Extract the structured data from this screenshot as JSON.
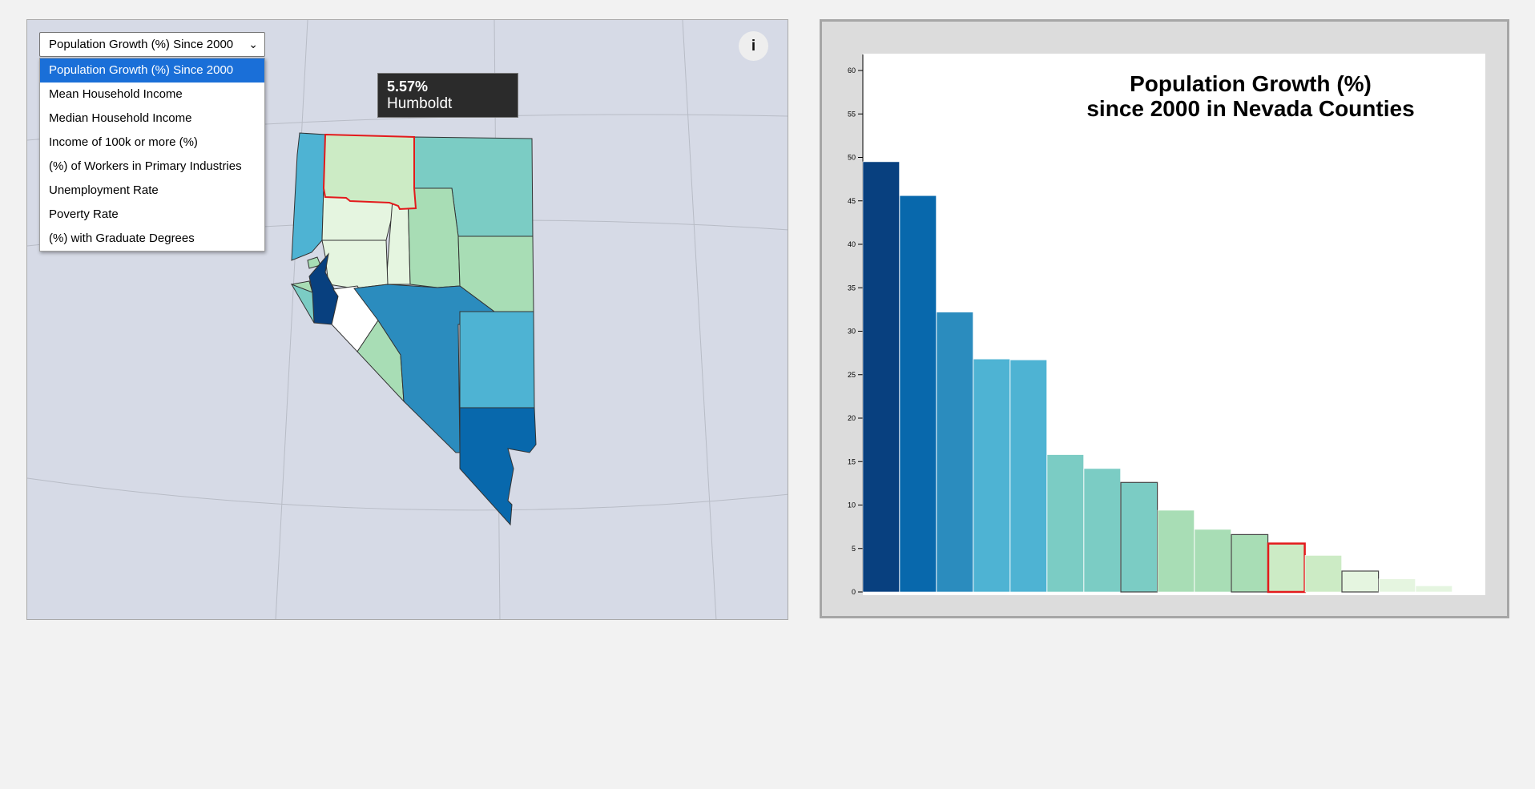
{
  "dropdown": {
    "selected_label": "Population Growth (%) Since 2000",
    "options": [
      "Population Growth (%) Since 2000",
      "Mean Household Income",
      "Median Household Income",
      "Income of 100k or more (%)",
      "(%) of Workers in Primary Industries",
      "Unemployment Rate",
      "Poverty Rate",
      "(%) with Graduate Degrees"
    ]
  },
  "info_button": {
    "label": "i"
  },
  "tooltip": {
    "value": "5.57%",
    "county": "Humboldt"
  },
  "map": {
    "background_color": "#d6dae6",
    "highlight_color": "#e31a1c"
  },
  "chart": {
    "title_line1": "Population Growth (%)",
    "title_line2": "since 2000 in Nevada Counties"
  },
  "chart_data": {
    "type": "bar",
    "title": "Population Growth (%) since 2000 in Nevada Counties",
    "xlabel": "",
    "ylabel": "",
    "ylim": [
      0,
      60
    ],
    "yticks": [
      0,
      5,
      10,
      15,
      20,
      25,
      30,
      35,
      40,
      45,
      50,
      55,
      60
    ],
    "values": [
      49.5,
      45.6,
      32.2,
      26.8,
      26.7,
      15.8,
      14.2,
      12.6,
      9.4,
      7.2,
      6.6,
      5.57,
      4.2,
      2.4,
      1.5,
      0.7
    ],
    "colors": [
      "#08407f",
      "#0868ac",
      "#2b8cbe",
      "#4eb3d3",
      "#4eb3d3",
      "#7bccc4",
      "#7bccc4",
      "#7bccc4",
      "#a8ddb5",
      "#a8ddb5",
      "#a8ddb5",
      "#ccebc5",
      "#ccebc5",
      "#e5f5e0",
      "#e5f5e0",
      "#e5f5e0"
    ],
    "outlined_index": [
      7,
      10,
      13
    ],
    "highlighted_index": 11,
    "grid": false
  }
}
